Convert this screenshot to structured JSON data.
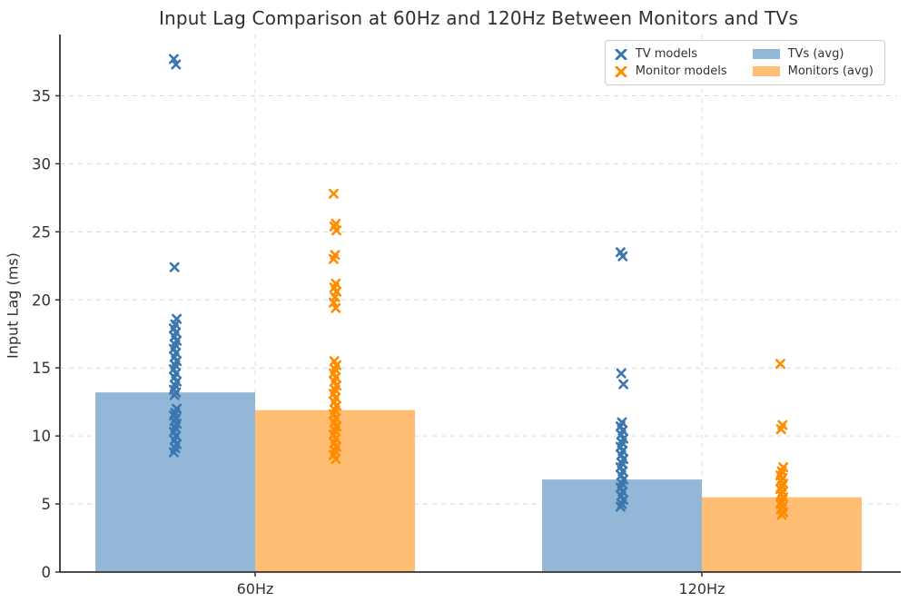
{
  "chart_data": {
    "type": "bar",
    "overlay": "scatter",
    "title": "Input Lag Comparison at 60Hz and 120Hz Between Monitors and TVs",
    "xlabel": "",
    "ylabel": "Input Lag (ms)",
    "categories": [
      "60Hz",
      "120Hz"
    ],
    "yticks": [
      0,
      5,
      10,
      15,
      20,
      25,
      30,
      35
    ],
    "ylim": [
      0,
      39.5
    ],
    "grid": "dashed horizontal lines at y ticks and dashed vertical lines at category centers",
    "legend_position": "top-right",
    "bar_series": [
      {
        "name": "TVs (avg)",
        "values": [
          13.2,
          6.8
        ],
        "color": "#93b7d7"
      },
      {
        "name": "Monitors (avg)",
        "values": [
          11.9,
          5.5
        ],
        "color": "#ffbe73"
      }
    ],
    "scatter_series": [
      {
        "name": "TV models",
        "marker": "x",
        "color": "#3b76af",
        "values": [
          [
            37.7,
            37.3,
            22.4,
            18.6,
            18.2,
            17.9,
            17.6,
            17.3,
            17.0,
            16.7,
            16.4,
            16.1,
            15.8,
            15.5,
            15.2,
            14.9,
            14.6,
            14.3,
            14.0,
            13.7,
            13.4,
            13.2,
            13.0,
            12.0,
            11.7,
            11.5,
            11.3,
            11.1,
            10.9,
            10.6,
            10.3,
            10.0,
            9.7,
            9.4,
            9.1,
            8.8
          ],
          [
            23.5,
            23.2,
            14.6,
            13.8,
            11.0,
            10.7,
            10.4,
            10.1,
            9.8,
            9.5,
            9.2,
            8.9,
            8.6,
            8.3,
            8.0,
            7.7,
            7.4,
            7.1,
            6.8,
            6.5,
            6.2,
            5.9,
            5.6,
            5.3,
            5.0,
            4.8
          ]
        ]
      },
      {
        "name": "Monitor models",
        "marker": "x",
        "color": "#ff8c00",
        "values": [
          [
            27.8,
            25.6,
            25.4,
            25.1,
            23.3,
            23.0,
            21.2,
            20.9,
            20.6,
            20.2,
            19.8,
            19.4,
            15.5,
            15.2,
            14.9,
            14.6,
            14.3,
            14.0,
            13.7,
            13.4,
            13.1,
            12.8,
            12.5,
            12.2,
            11.9,
            11.6,
            11.3,
            11.0,
            10.7,
            10.4,
            10.1,
            9.8,
            9.5,
            9.2,
            8.9,
            8.6,
            8.3
          ],
          [
            15.3,
            10.8,
            10.5,
            7.7,
            7.4,
            7.1,
            6.9,
            6.7,
            6.5,
            6.3,
            6.1,
            5.9,
            5.7,
            5.5,
            5.2,
            5.0,
            4.8,
            4.6,
            4.4,
            4.2
          ]
        ]
      }
    ],
    "legend": {
      "entries": [
        {
          "label": "TV models",
          "swatch": "x-marker",
          "color": "#3b76af"
        },
        {
          "label": "Monitor models",
          "swatch": "x-marker",
          "color": "#ff8c00"
        },
        {
          "label": "TVs (avg)",
          "swatch": "patch",
          "color": "#93b7d7"
        },
        {
          "label": "Monitors (avg)",
          "swatch": "patch",
          "color": "#ffbe73"
        }
      ]
    },
    "colors": {
      "axis": "#333333",
      "tick_label": "#333333",
      "gridline": "#d9d9d9",
      "legend_border": "#cccccc"
    }
  }
}
